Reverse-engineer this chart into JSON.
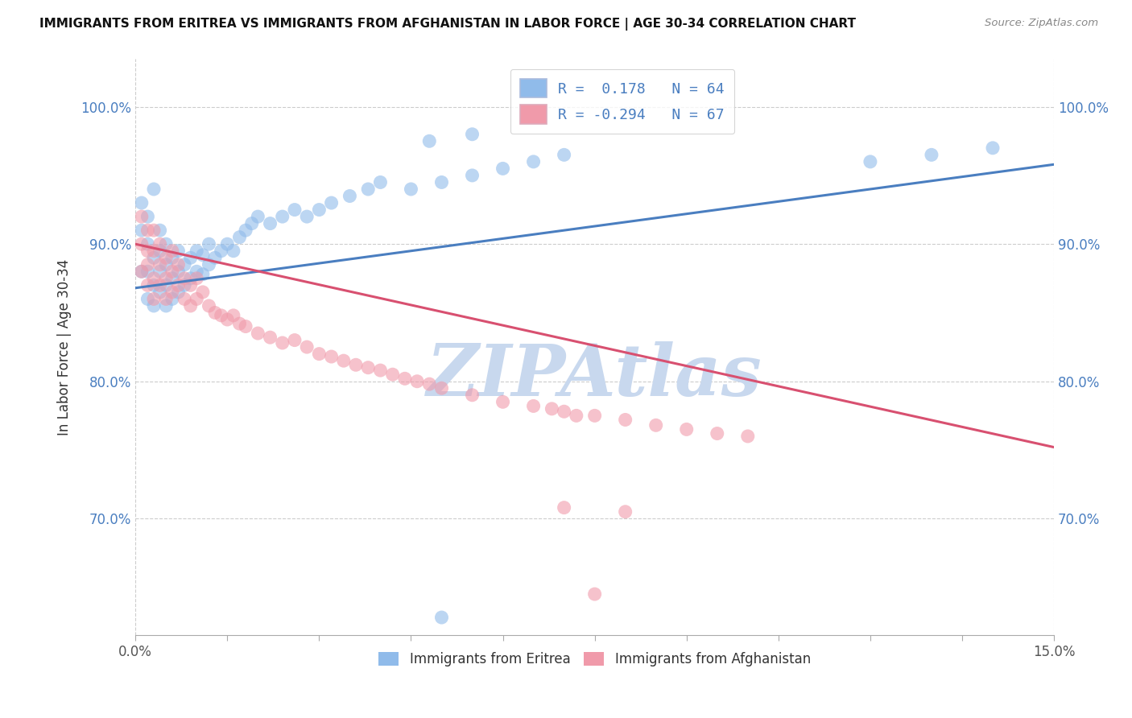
{
  "title": "IMMIGRANTS FROM ERITREA VS IMMIGRANTS FROM AFGHANISTAN IN LABOR FORCE | AGE 30-34 CORRELATION CHART",
  "source": "Source: ZipAtlas.com",
  "ylabel": "In Labor Force | Age 30-34",
  "xlim": [
    0.0,
    0.15
  ],
  "ylim": [
    0.615,
    1.035
  ],
  "x_ticks": [
    0.0,
    0.015,
    0.03,
    0.045,
    0.06,
    0.075,
    0.09,
    0.105,
    0.12,
    0.135,
    0.15
  ],
  "x_tick_labels": [
    "0.0%",
    "",
    "",
    "",
    "",
    "",
    "",
    "",
    "",
    "",
    "15.0%"
  ],
  "y_ticks": [
    0.7,
    0.8,
    0.9,
    1.0
  ],
  "y_tick_labels": [
    "70.0%",
    "80.0%",
    "90.0%",
    "100.0%"
  ],
  "legend_R_blue": "0.178",
  "legend_N_blue": "64",
  "legend_R_pink": "-0.294",
  "legend_N_pink": "67",
  "legend_label_blue": "Immigrants from Eritrea",
  "legend_label_pink": "Immigrants from Afghanistan",
  "blue_color": "#90bbea",
  "pink_color": "#f09aaa",
  "blue_line_color": "#4a7ec0",
  "pink_line_color": "#d85070",
  "watermark_text": "ZIPAtlas",
  "watermark_color": "#c8d8ee",
  "background_color": "#ffffff",
  "grid_color": "#cccccc",
  "blue_trend_x": [
    0.0,
    0.15
  ],
  "blue_trend_y": [
    0.868,
    0.958
  ],
  "pink_trend_x": [
    0.0,
    0.15
  ],
  "pink_trend_y": [
    0.9,
    0.752
  ],
  "blue_scatter_x": [
    0.001,
    0.001,
    0.001,
    0.002,
    0.002,
    0.002,
    0.002,
    0.003,
    0.003,
    0.003,
    0.003,
    0.004,
    0.004,
    0.004,
    0.004,
    0.005,
    0.005,
    0.005,
    0.005,
    0.006,
    0.006,
    0.006,
    0.007,
    0.007,
    0.007,
    0.008,
    0.008,
    0.009,
    0.009,
    0.01,
    0.01,
    0.011,
    0.011,
    0.012,
    0.012,
    0.013,
    0.014,
    0.015,
    0.016,
    0.017,
    0.018,
    0.019,
    0.02,
    0.022,
    0.024,
    0.026,
    0.028,
    0.03,
    0.032,
    0.035,
    0.038,
    0.04,
    0.045,
    0.05,
    0.055,
    0.06,
    0.065,
    0.07,
    0.05,
    0.12,
    0.13,
    0.14,
    0.048,
    0.055
  ],
  "blue_scatter_y": [
    0.93,
    0.91,
    0.88,
    0.9,
    0.88,
    0.86,
    0.92,
    0.87,
    0.855,
    0.89,
    0.94,
    0.865,
    0.88,
    0.895,
    0.91,
    0.855,
    0.87,
    0.885,
    0.9,
    0.86,
    0.875,
    0.89,
    0.865,
    0.88,
    0.895,
    0.87,
    0.885,
    0.875,
    0.89,
    0.88,
    0.895,
    0.878,
    0.892,
    0.885,
    0.9,
    0.89,
    0.895,
    0.9,
    0.895,
    0.905,
    0.91,
    0.915,
    0.92,
    0.915,
    0.92,
    0.925,
    0.92,
    0.925,
    0.93,
    0.935,
    0.94,
    0.945,
    0.94,
    0.945,
    0.95,
    0.955,
    0.96,
    0.965,
    0.628,
    0.96,
    0.965,
    0.97,
    0.975,
    0.98
  ],
  "pink_scatter_x": [
    0.001,
    0.001,
    0.001,
    0.002,
    0.002,
    0.002,
    0.002,
    0.003,
    0.003,
    0.003,
    0.003,
    0.004,
    0.004,
    0.004,
    0.005,
    0.005,
    0.005,
    0.006,
    0.006,
    0.006,
    0.007,
    0.007,
    0.008,
    0.008,
    0.009,
    0.009,
    0.01,
    0.01,
    0.011,
    0.012,
    0.013,
    0.014,
    0.015,
    0.016,
    0.017,
    0.018,
    0.02,
    0.022,
    0.024,
    0.026,
    0.028,
    0.03,
    0.032,
    0.034,
    0.036,
    0.038,
    0.04,
    0.042,
    0.044,
    0.046,
    0.048,
    0.05,
    0.055,
    0.06,
    0.065,
    0.07,
    0.075,
    0.08,
    0.085,
    0.09,
    0.095,
    0.1,
    0.07,
    0.075,
    0.08,
    0.068,
    0.072
  ],
  "pink_scatter_y": [
    0.9,
    0.88,
    0.92,
    0.895,
    0.87,
    0.91,
    0.885,
    0.875,
    0.895,
    0.86,
    0.91,
    0.87,
    0.885,
    0.9,
    0.86,
    0.875,
    0.89,
    0.865,
    0.88,
    0.895,
    0.87,
    0.885,
    0.875,
    0.86,
    0.855,
    0.87,
    0.86,
    0.875,
    0.865,
    0.855,
    0.85,
    0.848,
    0.845,
    0.848,
    0.842,
    0.84,
    0.835,
    0.832,
    0.828,
    0.83,
    0.825,
    0.82,
    0.818,
    0.815,
    0.812,
    0.81,
    0.808,
    0.805,
    0.802,
    0.8,
    0.798,
    0.795,
    0.79,
    0.785,
    0.782,
    0.778,
    0.775,
    0.772,
    0.768,
    0.765,
    0.762,
    0.76,
    0.708,
    0.645,
    0.705,
    0.78,
    0.775
  ]
}
